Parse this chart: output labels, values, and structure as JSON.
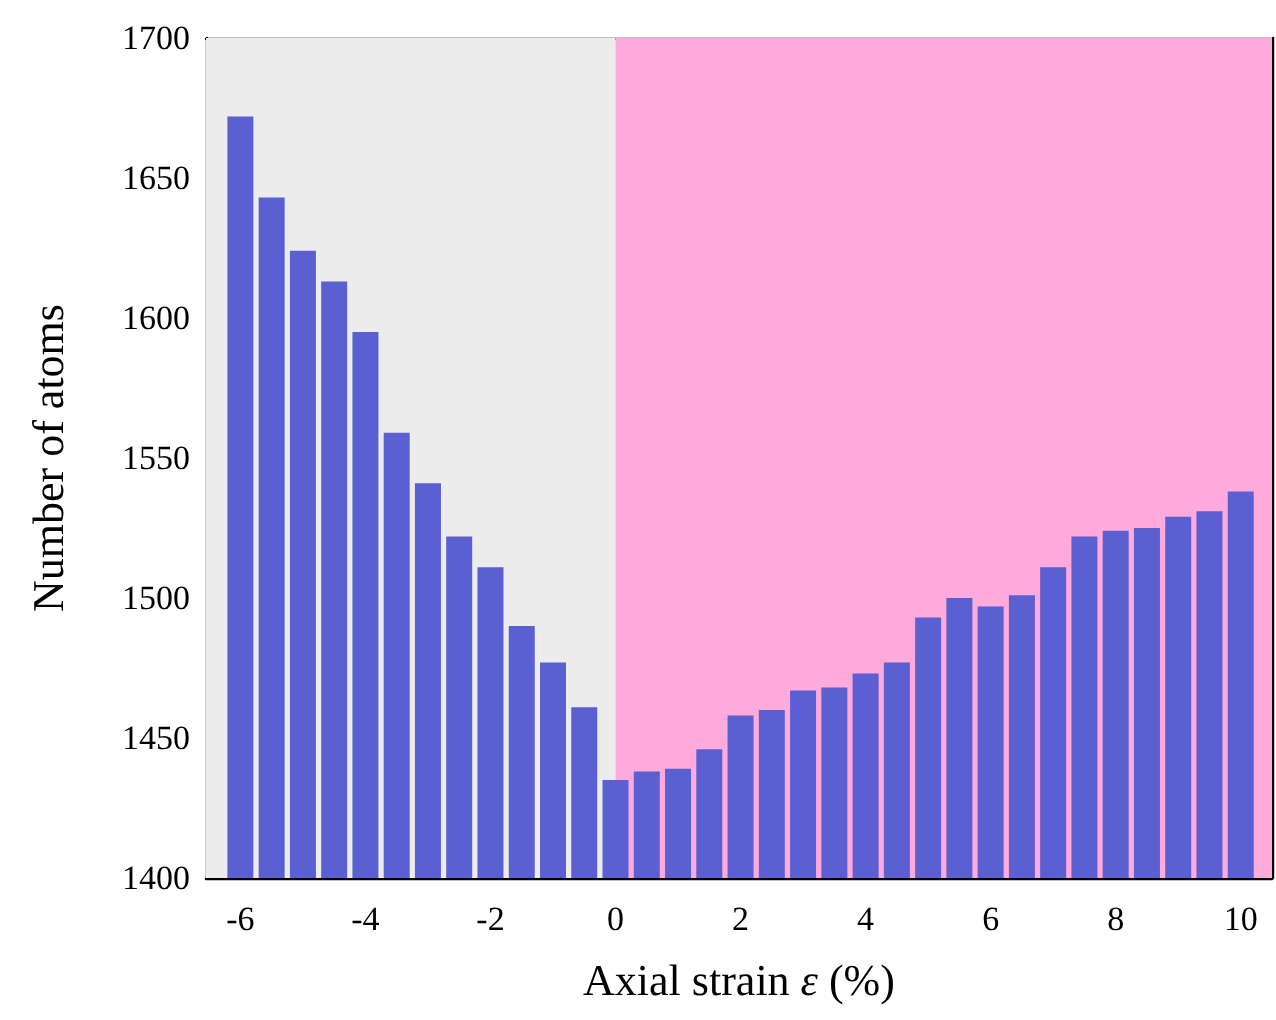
{
  "chart_data": {
    "type": "bar",
    "xlabel": "Axial strain ε (%)",
    "ylabel": "Number of atoms",
    "x": [
      -6,
      -5.5,
      -5,
      -4.5,
      -4,
      -3.5,
      -3,
      -2.5,
      -2,
      -1.5,
      -1,
      -0.5,
      0,
      0.5,
      1,
      1.5,
      2,
      2.5,
      3,
      3.5,
      4,
      4.5,
      5,
      5.5,
      6,
      6.5,
      7,
      7.5,
      8,
      8.5,
      9,
      9.5,
      10
    ],
    "values": [
      1672,
      1643,
      1624,
      1613,
      1595,
      1559,
      1541,
      1522,
      1511,
      1490,
      1477,
      1461,
      1435,
      1438,
      1439,
      1446,
      1458,
      1460,
      1467,
      1468,
      1473,
      1477,
      1493,
      1500,
      1497,
      1501,
      1511,
      1522,
      1524,
      1525,
      1529,
      1531,
      1538
    ],
    "color": "#5a5fd2",
    "xlim": [
      -6.55,
      10.5
    ],
    "xticks": [
      -6,
      -4,
      -2,
      0,
      2,
      4,
      6,
      8,
      10
    ],
    "ylim": [
      1400,
      1700
    ],
    "yticks": [
      1400,
      1450,
      1500,
      1550,
      1600,
      1650,
      1700
    ],
    "bands": [
      {
        "axis": "x",
        "from": -6.55,
        "to": 0,
        "color": "#ececec"
      },
      {
        "axis": "x",
        "from": 0,
        "to": 10.5,
        "color": "#ffaadc"
      }
    ]
  }
}
